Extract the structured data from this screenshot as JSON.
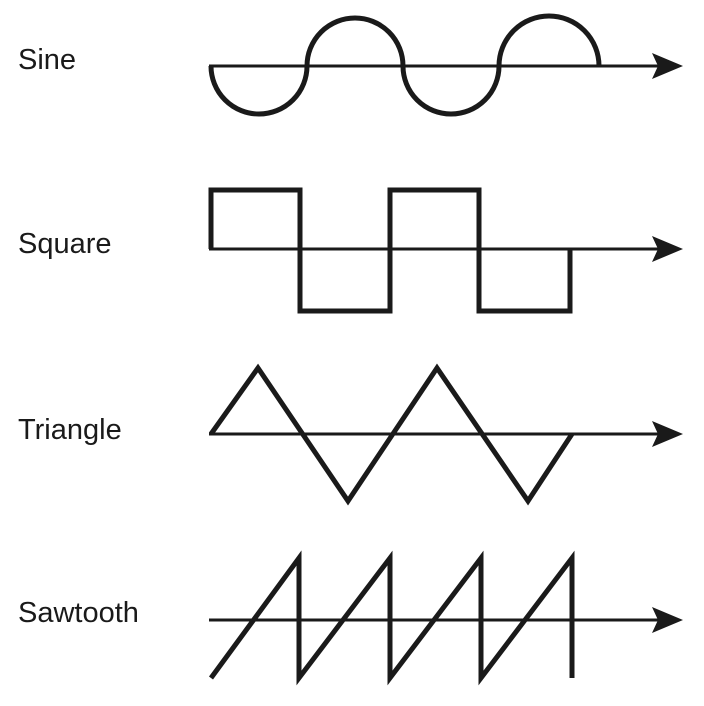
{
  "waveforms": [
    {
      "id": "sine",
      "label": "Sine"
    },
    {
      "id": "square",
      "label": "Square"
    },
    {
      "id": "triangle",
      "label": "Triangle"
    },
    {
      "id": "sawtooth",
      "label": "Sawtooth"
    }
  ],
  "colors": {
    "ink": "#1a1a1a",
    "background": "#ffffff"
  }
}
